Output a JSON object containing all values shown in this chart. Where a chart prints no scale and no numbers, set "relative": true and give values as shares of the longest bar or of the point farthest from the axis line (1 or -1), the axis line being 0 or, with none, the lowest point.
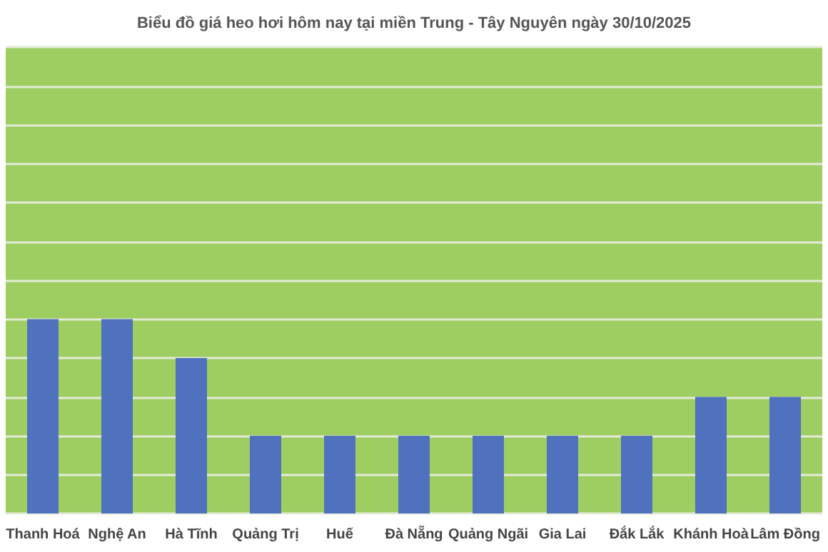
{
  "chart_data": {
    "type": "bar",
    "title": "Biểu đồ giá heo hơi hôm nay tại miền Trung - Tây Nguyên ngày 30/10/2025",
    "categories": [
      "Thanh Hoá",
      "Nghệ An",
      "Hà Tĩnh",
      "Quảng Trị",
      "Huế",
      "Đà Nẵng",
      "Quảng Ngãi",
      "Gia Lai",
      "Đắk Lắk",
      "Khánh Hoà",
      "Lâm Đồng"
    ],
    "values": [
      1,
      1,
      0.8,
      0.4,
      0.4,
      0.4,
      0.4,
      0.4,
      0.4,
      0.6,
      0.6
    ],
    "color": "#4f71be",
    "relative": true,
    "grid": "y"
  }
}
